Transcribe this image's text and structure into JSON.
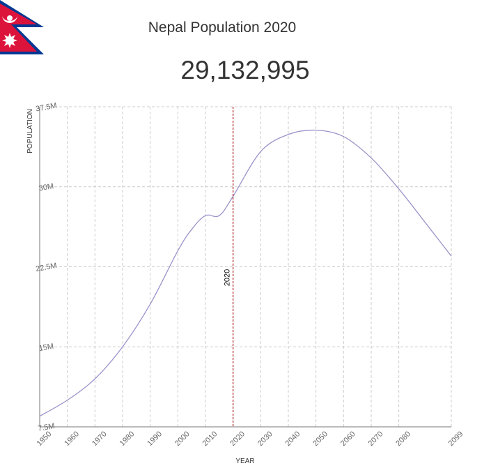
{
  "header": {
    "title": "Nepal Population 2020",
    "population": "29,132,995"
  },
  "colors": {
    "line": "#9b93c9",
    "marker": "#b22222",
    "flag_red": "#dc143c",
    "flag_blue": "#003893"
  },
  "chart_data": {
    "type": "line",
    "xlabel": "YEAR",
    "ylabel": "POPULATION",
    "xlim": [
      1950,
      2099
    ],
    "ylim": [
      7.5,
      37.5
    ],
    "x_ticks": [
      1950,
      1960,
      1970,
      1980,
      1990,
      2000,
      2010,
      2020,
      2030,
      2040,
      2050,
      2060,
      2070,
      2080,
      2099
    ],
    "y_ticks": [
      {
        "value": 7.5,
        "label": "7.5M"
      },
      {
        "value": 15,
        "label": "15M"
      },
      {
        "value": 22.5,
        "label": "22.5M"
      },
      {
        "value": 30,
        "label": "30M"
      },
      {
        "value": 37.5,
        "label": "37.5M"
      }
    ],
    "marker": {
      "x": 2020,
      "label": "2020"
    },
    "series": [
      {
        "x": [
          1950,
          1960,
          1970,
          1980,
          1990,
          2000,
          2005,
          2010,
          2015,
          2020,
          2030,
          2040,
          2050,
          2060,
          2070,
          2080,
          2090,
          2099
        ],
        "values": [
          8.5,
          10.0,
          12.0,
          15.0,
          19.0,
          24.0,
          26.0,
          27.3,
          27.3,
          29.1,
          33.3,
          34.9,
          35.3,
          34.7,
          32.7,
          29.8,
          26.5,
          23.5
        ]
      }
    ],
    "grid": true
  }
}
